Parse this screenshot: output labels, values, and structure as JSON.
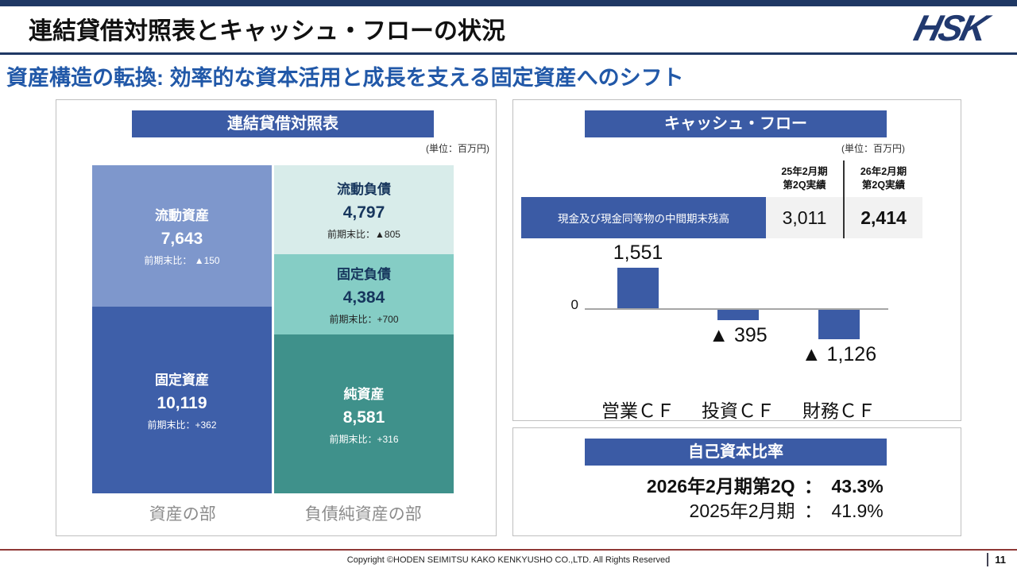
{
  "page": {
    "title": "連結貸借対照表とキャッシュ・フローの状況",
    "subtitle": "資産構造の転換: 効率的な資本活用と成長を支える固定資産へのシフト",
    "logo_text": "HSK",
    "footer": {
      "copyright": "Copyright ©HODEN SEIMITSU KAKO KENKYUSHO CO.,LTD. All Rights Reserved",
      "page_number": "11"
    }
  },
  "colors": {
    "accent_navy": "#1f3864",
    "panel_header": "#3b5ba5",
    "current_assets": "#7e97cc",
    "fixed_assets": "#3e5fa9",
    "current_liabilities": "#d8ecea",
    "fixed_liabilities": "#85cdc5",
    "net_assets": "#3f918b",
    "subtitle_blue": "#2158a8",
    "footer_line": "#8f3836",
    "bar_color": "#3b5ba5"
  },
  "balance_sheet": {
    "header": "連結貸借対照表",
    "unit_note": "(単位：百万円)",
    "assets": [
      {
        "label": "流動資産",
        "value": "7,643",
        "change": "前期末比： ▲150",
        "num": 7643
      },
      {
        "label": "固定資産",
        "value": "10,119",
        "change": "前期末比：+362",
        "num": 10119
      }
    ],
    "liabilities": [
      {
        "label": "流動負債",
        "value": "4,797",
        "change": "前期末比：▲805",
        "num": 4797
      },
      {
        "label": "固定負債",
        "value": "4,384",
        "change": "前期末比：+700",
        "num": 4384
      },
      {
        "label": "純資産",
        "value": "8,581",
        "change": "前期末比：+316",
        "num": 8581
      }
    ],
    "footer_labels": {
      "assets": "資産の部",
      "liabilities": "負債純資産の部"
    }
  },
  "cash_flow": {
    "header": "キャッシュ・フロー",
    "unit_note": "(単位：百万円)",
    "table": {
      "col_headers": [
        "25年2月期\n第2Q実績",
        "26年2月期\n第2Q実績"
      ],
      "row_label": "現金及び現金同等物の中間期末残高",
      "values": [
        "3,011",
        "2,414"
      ]
    },
    "chart_data": {
      "type": "bar",
      "categories": [
        "営業ＣＦ",
        "投資ＣＦ",
        "財務ＣＦ"
      ],
      "values": [
        1551,
        -395,
        -1126
      ],
      "labels": [
        "1,551",
        "▲ 395",
        "▲ 1,126"
      ],
      "zero_label": "0",
      "bar_color": "#3b5ba5",
      "title": "キャッシュ・フロー",
      "ylabel": "百万円",
      "grid": false,
      "legend": false
    }
  },
  "equity_ratio": {
    "header": "自己資本比率",
    "rows": [
      {
        "label": "2026年2月期第2Q",
        "colon": "：",
        "value": "43.3%"
      },
      {
        "label": "2025年2月期",
        "colon": "：",
        "value": "41.9%"
      }
    ]
  }
}
